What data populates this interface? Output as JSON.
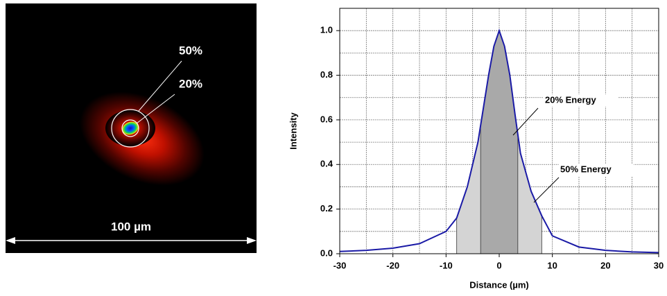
{
  "image_panel": {
    "labels": [
      "50%",
      "20%"
    ],
    "scale_label": "100 µm"
  },
  "chart_data": {
    "type": "line",
    "xlabel": "Distance (µm)",
    "ylabel": "Intensity",
    "x": [
      -30,
      -25,
      -20,
      -15,
      -10,
      -8,
      -6,
      -4,
      -3,
      -2,
      -1,
      0,
      1,
      2,
      3,
      4,
      6,
      8,
      10,
      15,
      20,
      25,
      30
    ],
    "series": [
      {
        "name": "Intensity",
        "color": "#1a1aa6",
        "values": [
          0.01,
          0.015,
          0.025,
          0.045,
          0.1,
          0.16,
          0.3,
          0.5,
          0.65,
          0.8,
          0.93,
          1.0,
          0.93,
          0.8,
          0.62,
          0.45,
          0.28,
          0.17,
          0.08,
          0.03,
          0.015,
          0.008,
          0.005
        ]
      }
    ],
    "regions": [
      {
        "name": "50% Energy",
        "range": [
          -8,
          8
        ],
        "color": "#d4d4d4"
      },
      {
        "name": "20% Energy",
        "range": [
          -3.5,
          3.5
        ],
        "color": "#a9a9a9"
      }
    ],
    "xlim": [
      -30,
      30
    ],
    "ylim": [
      0,
      1.1
    ],
    "xticks": [
      -30,
      -20,
      -10,
      0,
      10,
      20,
      30
    ],
    "yticks": [
      {
        "value": 0,
        "label": "0.0"
      },
      {
        "value": 0.2,
        "label": "0.2"
      },
      {
        "value": 0.4,
        "label": "0.4"
      },
      {
        "value": 0.6,
        "label": "0.6"
      },
      {
        "value": 0.8,
        "label": "0.8"
      },
      {
        "value": 1,
        "label": "1.0"
      }
    ],
    "xgrid": [
      -25,
      -20,
      -15,
      -10,
      -5,
      0,
      5,
      10,
      15,
      20,
      25
    ],
    "ygrid": [
      0.1,
      0.2,
      0.3,
      0.4,
      0.5,
      0.6,
      0.7,
      0.8,
      0.9,
      1.0
    ],
    "grid": true
  }
}
